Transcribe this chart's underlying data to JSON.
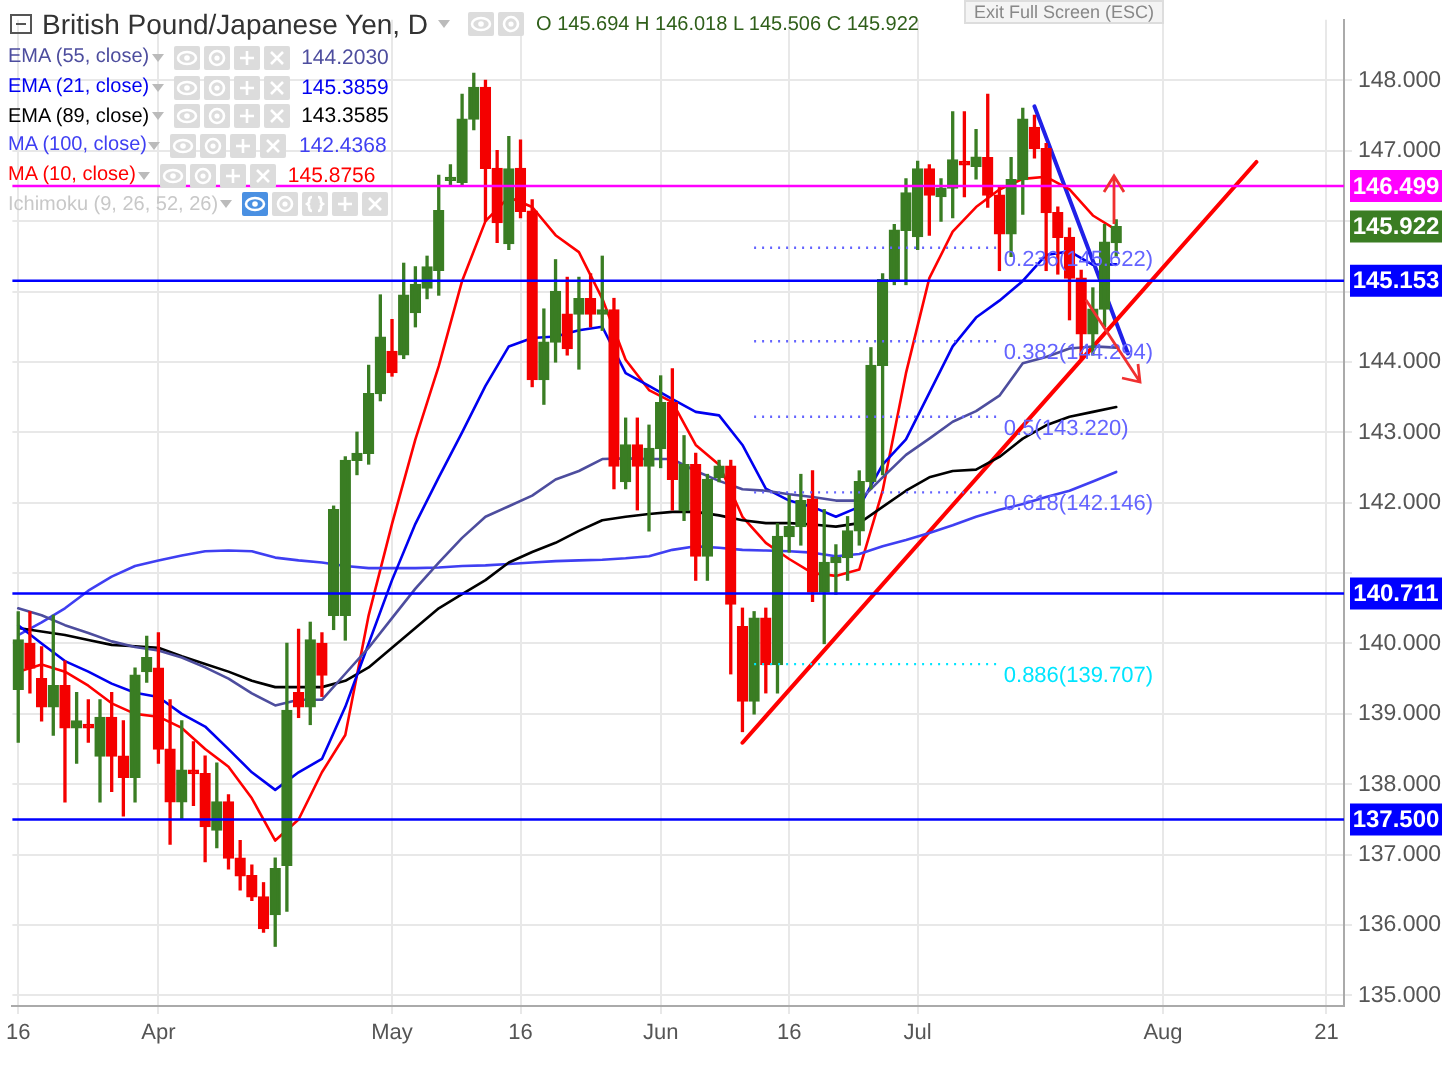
{
  "chart_data": {
    "type": "candlestick",
    "title": "British Pound/Japanese Yen, D",
    "categories": [
      "16",
      null,
      null,
      null,
      null,
      null,
      null,
      null,
      null,
      null,
      null,
      null,
      "Apr",
      null,
      null,
      null,
      null,
      null,
      null,
      null,
      null,
      null,
      null,
      null,
      null,
      null,
      null,
      null,
      null,
      null,
      null,
      null,
      "May",
      null,
      null,
      null,
      null,
      null,
      null,
      null,
      null,
      null,
      null,
      "16",
      null,
      null,
      null,
      null,
      null,
      null,
      null,
      null,
      null,
      null,
      null,
      "Jun",
      null,
      null,
      null,
      null,
      null,
      null,
      null,
      null,
      null,
      null,
      "16",
      null,
      null,
      null,
      null,
      null,
      null,
      null,
      null,
      null,
      null,
      "Jul",
      null,
      null,
      null,
      null,
      null,
      null,
      null,
      null,
      null,
      null,
      null,
      null,
      null,
      null,
      null,
      null,
      null,
      null,
      null,
      null,
      "Aug",
      null,
      null,
      null,
      null,
      null,
      null,
      null,
      null,
      null,
      null,
      null,
      null,
      null,
      "21",
      null
    ],
    "ohlc": [
      [
        139.35,
        140.45,
        138.6,
        140.05
      ],
      [
        140.0,
        140.45,
        139.3,
        139.65
      ],
      [
        139.5,
        139.95,
        138.9,
        139.1
      ],
      [
        139.1,
        140.4,
        138.7,
        139.4
      ],
      [
        139.4,
        139.75,
        137.75,
        138.8
      ],
      [
        138.8,
        139.3,
        138.3,
        138.9
      ],
      [
        138.85,
        139.2,
        138.6,
        138.8
      ],
      [
        138.4,
        139.2,
        137.75,
        138.95
      ],
      [
        138.95,
        139.3,
        137.9,
        138.4
      ],
      [
        138.4,
        138.9,
        137.55,
        138.1
      ],
      [
        138.1,
        139.65,
        137.75,
        139.55
      ],
      [
        139.6,
        140.1,
        139.45,
        139.8
      ],
      [
        139.65,
        140.15,
        138.3,
        138.5
      ],
      [
        138.5,
        139.2,
        137.15,
        137.75
      ],
      [
        137.75,
        138.9,
        137.5,
        138.2
      ],
      [
        138.2,
        138.6,
        137.7,
        138.15
      ],
      [
        138.15,
        138.4,
        136.9,
        137.4
      ],
      [
        137.35,
        138.3,
        137.1,
        137.75
      ],
      [
        137.75,
        137.85,
        136.8,
        136.95
      ],
      [
        136.95,
        137.2,
        136.5,
        136.7
      ],
      [
        136.7,
        136.85,
        136.35,
        136.4
      ],
      [
        136.4,
        136.6,
        135.9,
        135.95
      ],
      [
        136.15,
        136.95,
        135.7,
        136.8
      ],
      [
        136.85,
        140.0,
        136.2,
        139.05
      ],
      [
        139.3,
        140.2,
        138.95,
        139.1
      ],
      [
        139.1,
        140.3,
        138.85,
        140.05
      ],
      [
        140.0,
        140.15,
        139.25,
        139.55
      ],
      [
        140.4,
        141.95,
        140.2,
        141.9
      ],
      [
        140.4,
        142.65,
        140.05,
        142.6
      ],
      [
        142.6,
        143.0,
        142.4,
        142.7
      ],
      [
        142.7,
        143.95,
        142.55,
        143.55
      ],
      [
        143.55,
        144.95,
        143.45,
        144.35
      ],
      [
        144.15,
        144.6,
        143.8,
        143.85
      ],
      [
        144.1,
        145.4,
        144.05,
        144.95
      ],
      [
        144.7,
        145.35,
        144.5,
        145.1
      ],
      [
        145.05,
        145.5,
        144.9,
        145.35
      ],
      [
        145.3,
        146.65,
        144.95,
        146.15
      ],
      [
        146.58,
        146.8,
        146.5,
        146.62
      ],
      [
        146.55,
        147.8,
        146.5,
        147.45
      ],
      [
        147.45,
        148.1,
        147.3,
        147.9
      ],
      [
        147.9,
        148.0,
        146.0,
        146.75
      ],
      [
        146.75,
        147.0,
        145.7,
        145.98
      ],
      [
        145.68,
        147.2,
        145.6,
        146.74
      ],
      [
        146.75,
        147.15,
        146.05,
        146.14
      ],
      [
        146.14,
        146.3,
        143.65,
        143.75
      ],
      [
        143.75,
        144.75,
        143.4,
        144.28
      ],
      [
        144.28,
        145.45,
        144.0,
        145.0
      ],
      [
        144.68,
        145.2,
        144.1,
        144.19
      ],
      [
        144.68,
        145.2,
        143.9,
        144.9
      ],
      [
        144.9,
        145.25,
        144.5,
        144.68
      ],
      [
        144.68,
        145.5,
        144.45,
        144.74
      ],
      [
        144.74,
        144.9,
        142.2,
        142.52
      ],
      [
        142.3,
        143.2,
        142.2,
        142.82
      ],
      [
        142.82,
        143.2,
        141.9,
        142.52
      ],
      [
        142.52,
        143.1,
        141.6,
        142.77
      ],
      [
        142.77,
        143.8,
        142.5,
        143.42
      ],
      [
        143.42,
        143.9,
        141.9,
        142.33
      ],
      [
        141.89,
        142.95,
        141.75,
        142.54
      ],
      [
        142.54,
        142.7,
        140.9,
        141.24
      ],
      [
        141.24,
        142.4,
        140.9,
        142.33
      ],
      [
        142.36,
        142.6,
        142.3,
        142.52
      ],
      [
        142.52,
        142.6,
        139.57,
        140.56
      ],
      [
        140.24,
        140.5,
        138.75,
        139.18
      ],
      [
        139.18,
        140.45,
        139.0,
        140.36
      ],
      [
        140.36,
        140.5,
        139.3,
        139.7
      ],
      [
        139.7,
        141.7,
        139.3,
        141.52
      ],
      [
        141.52,
        142.1,
        141.3,
        141.66
      ],
      [
        141.66,
        142.4,
        141.4,
        142.03
      ],
      [
        142.05,
        142.45,
        140.6,
        140.73
      ],
      [
        140.73,
        141.9,
        140.0,
        141.15
      ],
      [
        141.15,
        141.4,
        140.7,
        141.22
      ],
      [
        141.22,
        141.8,
        140.9,
        141.6
      ],
      [
        141.6,
        142.45,
        141.4,
        142.3
      ],
      [
        142.3,
        144.2,
        142.2,
        143.95
      ],
      [
        143.95,
        145.25,
        142.4,
        145.17
      ],
      [
        145.17,
        145.95,
        145.1,
        145.87
      ],
      [
        145.87,
        146.6,
        145.1,
        146.4
      ],
      [
        145.78,
        146.85,
        145.6,
        146.74
      ],
      [
        146.74,
        146.8,
        145.8,
        146.37
      ],
      [
        146.35,
        146.6,
        146.0,
        146.47
      ],
      [
        146.47,
        147.55,
        146.05,
        146.87
      ],
      [
        146.85,
        147.55,
        146.35,
        146.8
      ],
      [
        146.78,
        147.3,
        146.6,
        146.91
      ],
      [
        146.9,
        147.8,
        146.2,
        146.37
      ],
      [
        146.37,
        146.5,
        145.3,
        145.82
      ],
      [
        145.82,
        146.9,
        145.5,
        146.59
      ],
      [
        146.59,
        147.6,
        146.1,
        147.45
      ],
      [
        147.33,
        147.5,
        146.9,
        147.03
      ],
      [
        147.03,
        147.1,
        145.3,
        146.12
      ],
      [
        146.12,
        146.2,
        145.25,
        145.77
      ],
      [
        145.77,
        145.9,
        144.6,
        145.19
      ],
      [
        145.19,
        145.3,
        144.05,
        144.4
      ],
      [
        144.4,
        145.05,
        144.1,
        144.75
      ],
      [
        144.75,
        145.95,
        144.5,
        145.7
      ],
      [
        145.694,
        146.018,
        145.506,
        145.922
      ],
      null,
      null,
      null,
      null,
      null,
      null,
      null,
      null,
      null,
      null,
      null,
      null,
      null,
      null,
      null,
      null,
      null,
      null,
      null
    ],
    "colors": [
      "#3a7d23",
      "#f40000",
      "#f40000",
      "#3a7d23",
      "#f40000",
      "#3a7d23",
      "#f40000",
      "#3a7d23",
      "#f40000",
      "#f40000",
      "#3a7d23",
      "#3a7d23",
      "#f40000",
      "#f40000",
      "#3a7d23",
      "#f40000",
      "#f40000",
      "#3a7d23",
      "#f40000",
      "#f40000",
      "#f40000",
      "#f40000",
      "#3a7d23",
      "#3a7d23",
      "#f40000",
      "#3a7d23",
      "#f40000",
      "#3a7d23",
      "#3a7d23",
      "#3a7d23",
      "#3a7d23",
      "#3a7d23",
      "#f40000",
      "#3a7d23",
      "#3a7d23",
      "#3a7d23",
      "#3a7d23",
      "#3a7d23",
      "#3a7d23",
      "#3a7d23",
      "#f40000",
      "#f40000",
      "#3a7d23",
      "#f40000",
      "#f40000",
      "#3a7d23",
      "#3a7d23",
      "#f40000",
      "#3a7d23",
      "#f40000",
      "#3a7d23",
      "#f40000",
      "#3a7d23",
      "#f40000",
      "#3a7d23",
      "#3a7d23",
      "#f40000",
      "#3a7d23",
      "#f40000",
      "#3a7d23",
      "#3a7d23",
      "#f40000",
      "#f40000",
      "#3a7d23",
      "#f40000",
      "#3a7d23",
      "#3a7d23",
      "#3a7d23",
      "#f40000",
      "#3a7d23",
      "#3a7d23",
      "#3a7d23",
      "#3a7d23",
      "#3a7d23",
      "#3a7d23",
      "#3a7d23",
      "#3a7d23",
      "#3a7d23",
      "#f40000",
      "#3a7d23",
      "#3a7d23",
      "#f40000",
      "#3a7d23",
      "#f40000",
      "#f40000",
      "#3a7d23",
      "#3a7d23",
      "#f40000",
      "#f40000",
      "#f40000",
      "#f40000",
      "#f40000",
      "#3a7d23",
      "#3a7d23",
      "#3a7d23",
      null,
      null,
      null,
      null,
      null,
      null,
      null,
      null,
      null,
      null,
      null,
      null,
      null,
      null,
      null,
      null,
      null,
      null,
      null
    ],
    "series": [
      {
        "type": "line",
        "name": "EMA (55, close)",
        "color": "#4d4d9e",
        "values": [
          140.5,
          null,
          140.4,
          null,
          140.26,
          null,
          140.15,
          null,
          140.03,
          null,
          139.95,
          null,
          139.9,
          null,
          139.8,
          null,
          139.66,
          null,
          139.5,
          null,
          139.29,
          null,
          139.12,
          null,
          139.2,
          null,
          139.2,
          null,
          139.57,
          null,
          139.94,
          null,
          140.36,
          null,
          140.78,
          null,
          141.15,
          null,
          141.5,
          null,
          141.8,
          null,
          141.95,
          null,
          142.1,
          null,
          142.33,
          null,
          142.45,
          null,
          142.62,
          null,
          142.63,
          null,
          142.62,
          null,
          142.62,
          null,
          142.45,
          null,
          142.31,
          null,
          142.19,
          null,
          142.17,
          null,
          142.12,
          null,
          142.08,
          null,
          142.03,
          null,
          142.03,
          null,
          142.36,
          null,
          142.68,
          null,
          142.91,
          null,
          143.15,
          null,
          143.3,
          null,
          143.52,
          null,
          143.98,
          null,
          144.07,
          null,
          144.19,
          null,
          144.22,
          null,
          144.203,
          null,
          null,
          null,
          null,
          null,
          null,
          null,
          null,
          null,
          null,
          null,
          null,
          null,
          null,
          null,
          null,
          null,
          null,
          null
        ]
      },
      {
        "type": "line",
        "name": "EMA (21, close)",
        "color": "#0000f0",
        "values": [
          140.26,
          null,
          140.0,
          null,
          139.75,
          null,
          139.6,
          null,
          139.43,
          null,
          139.3,
          null,
          139.24,
          null,
          139.0,
          null,
          138.82,
          null,
          138.5,
          null,
          138.17,
          null,
          137.92,
          null,
          138.17,
          null,
          138.36,
          null,
          139.1,
          null,
          140.0,
          null,
          140.9,
          null,
          141.7,
          null,
          142.36,
          null,
          143.0,
          null,
          143.66,
          null,
          144.22,
          null,
          144.34,
          null,
          144.36,
          null,
          144.45,
          null,
          144.5,
          null,
          143.84,
          null,
          143.66,
          null,
          143.47,
          null,
          143.29,
          null,
          143.24,
          null,
          142.82,
          null,
          142.2,
          null,
          142.03,
          null,
          141.94,
          null,
          141.8,
          null,
          141.94,
          null,
          142.54,
          null,
          142.9,
          null,
          143.56,
          null,
          144.22,
          null,
          144.63,
          null,
          144.87,
          null,
          145.15,
          null,
          145.52,
          null,
          145.57,
          null,
          145.38,
          null,
          145.3859,
          null,
          null,
          null,
          null,
          null,
          null,
          null,
          null,
          null,
          null,
          null,
          null,
          null,
          null,
          null,
          null,
          null,
          null,
          null
        ]
      },
      {
        "type": "line",
        "name": "EMA (89, close)",
        "color": "#000000",
        "values": [
          140.22,
          null,
          140.17,
          null,
          140.12,
          null,
          140.05,
          null,
          139.98,
          null,
          139.96,
          null,
          139.94,
          null,
          139.82,
          null,
          139.71,
          null,
          139.6,
          null,
          139.47,
          null,
          139.38,
          null,
          139.38,
          null,
          139.38,
          null,
          139.47,
          null,
          139.66,
          null,
          139.94,
          null,
          140.22,
          null,
          140.5,
          null,
          140.7,
          null,
          140.9,
          null,
          141.15,
          null,
          141.3,
          null,
          141.43,
          null,
          141.6,
          null,
          141.75,
          null,
          141.8,
          null,
          141.84,
          null,
          141.87,
          null,
          141.87,
          null,
          141.82,
          null,
          141.75,
          null,
          141.71,
          null,
          141.71,
          null,
          141.69,
          null,
          141.66,
          null,
          141.71,
          null,
          141.94,
          null,
          142.17,
          null,
          142.36,
          null,
          142.45,
          null,
          142.47,
          null,
          142.65,
          null,
          142.91,
          null,
          143.1,
          null,
          143.22,
          null,
          143.29,
          null,
          143.3585,
          null,
          null,
          null,
          null,
          null,
          null,
          null,
          null,
          null,
          null,
          null,
          null,
          null,
          null,
          null,
          null,
          null,
          null,
          null
        ]
      },
      {
        "type": "line",
        "name": "MA (100, close)",
        "color": "#3f3ff2",
        "values": [
          140.12,
          null,
          140.3,
          null,
          140.5,
          null,
          140.75,
          null,
          140.95,
          null,
          141.1,
          null,
          141.18,
          null,
          141.25,
          null,
          141.31,
          null,
          141.32,
          null,
          141.31,
          null,
          141.22,
          null,
          141.18,
          null,
          141.15,
          null,
          141.1,
          null,
          141.07,
          null,
          141.07,
          null,
          141.07,
          null,
          141.08,
          null,
          141.1,
          null,
          141.11,
          null,
          141.13,
          null,
          141.15,
          null,
          141.17,
          null,
          141.18,
          null,
          141.19,
          null,
          141.21,
          null,
          141.24,
          null,
          141.33,
          null,
          141.38,
          null,
          141.36,
          null,
          141.33,
          null,
          141.32,
          null,
          141.31,
          null,
          141.29,
          null,
          141.24,
          null,
          141.27,
          null,
          141.38,
          null,
          141.47,
          null,
          141.57,
          null,
          141.68,
          null,
          141.8,
          null,
          141.9,
          null,
          141.98,
          null,
          142.08,
          null,
          142.17,
          null,
          142.3,
          null,
          142.4368,
          null,
          null,
          null,
          null,
          null,
          null,
          null,
          null,
          null,
          null,
          null,
          null,
          null,
          null,
          null,
          null,
          null,
          null,
          null
        ]
      },
      {
        "type": "line",
        "name": "MA (10, close)",
        "color": "#ff0000",
        "values": [
          139.6,
          null,
          139.7,
          null,
          139.6,
          null,
          139.4,
          null,
          139.15,
          null,
          139.0,
          null,
          138.96,
          null,
          138.8,
          null,
          138.5,
          null,
          138.25,
          null,
          137.8,
          null,
          137.2,
          null,
          137.5,
          null,
          138.17,
          null,
          138.7,
          null,
          140.4,
          null,
          141.7,
          null,
          142.9,
          null,
          143.94,
          null,
          145.15,
          null,
          146.0,
          null,
          146.34,
          null,
          146.2,
          null,
          145.8,
          null,
          145.56,
          null,
          144.9,
          null,
          144.03,
          null,
          143.6,
          null,
          143.43,
          null,
          142.82,
          null,
          142.54,
          null,
          141.8,
          null,
          141.43,
          null,
          141.2,
          null,
          141.0,
          null,
          140.96,
          null,
          141.05,
          null,
          142.17,
          null,
          143.84,
          null,
          145.19,
          null,
          145.85,
          null,
          146.2,
          null,
          146.45,
          null,
          146.6,
          null,
          146.63,
          null,
          146.45,
          null,
          146.08,
          null,
          145.8756,
          null,
          null,
          null,
          null,
          null,
          null,
          null,
          null,
          null,
          null,
          null,
          null,
          null,
          null,
          null,
          null,
          null,
          null,
          null
        ]
      },
      {
        "type": "line",
        "color": "#ff0000",
        "values": [
          null,
          null,
          null,
          null,
          null,
          null,
          null,
          null,
          null,
          null,
          null,
          null,
          null,
          null,
          null,
          null,
          null,
          null,
          null,
          null,
          null,
          null,
          null,
          null,
          null,
          null,
          null,
          null,
          null,
          null,
          null,
          null,
          null,
          null,
          null,
          null,
          null,
          null,
          null,
          null,
          null,
          null,
          null,
          null,
          null,
          null,
          null,
          null,
          null,
          null,
          null,
          null,
          null,
          null,
          null,
          null,
          null,
          null,
          null,
          null,
          null,
          null,
          138.59,
          null,
          null,
          null,
          null,
          null,
          null,
          null,
          null,
          null,
          null,
          null,
          null,
          null,
          null,
          null,
          null,
          null,
          null,
          null,
          null,
          null,
          null,
          null,
          null,
          null,
          null,
          null,
          null,
          null,
          null,
          null,
          null,
          null,
          null,
          null,
          null,
          null,
          null,
          null,
          null,
          null,
          null,
          null,
          146.84,
          null,
          null,
          null,
          null,
          null,
          null,
          null
        ]
      },
      {
        "type": "line",
        "color": "#2020e8",
        "values": [
          null,
          null,
          null,
          null,
          null,
          null,
          null,
          null,
          null,
          null,
          null,
          null,
          null,
          null,
          null,
          null,
          null,
          null,
          null,
          null,
          null,
          null,
          null,
          null,
          null,
          null,
          null,
          null,
          null,
          null,
          null,
          null,
          null,
          null,
          null,
          null,
          null,
          null,
          null,
          null,
          null,
          null,
          null,
          null,
          null,
          null,
          null,
          null,
          null,
          null,
          null,
          null,
          null,
          null,
          null,
          null,
          null,
          null,
          null,
          null,
          null,
          null,
          null,
          null,
          null,
          null,
          null,
          null,
          null,
          null,
          null,
          null,
          null,
          null,
          null,
          null,
          null,
          null,
          null,
          null,
          null,
          null,
          null,
          null,
          null,
          null,
          null,
          147.63,
          null,
          null,
          null,
          null,
          null,
          null,
          null,
          144.12,
          null,
          null,
          null,
          null,
          null,
          null,
          null,
          null,
          null,
          null,
          null,
          null,
          null,
          null,
          null,
          null,
          null,
          null
        ]
      }
    ],
    "ylim": [
      134.85,
      148.86
    ],
    "yticks": [
      {
        "value": 135,
        "label": "135.000"
      },
      {
        "value": 136,
        "label": "136.000"
      },
      {
        "value": 137,
        "label": "137.000"
      },
      {
        "value": 138,
        "label": "138.000"
      },
      {
        "value": 139,
        "label": "139.000"
      },
      {
        "value": 140,
        "label": "140.000"
      },
      {
        "value": 141,
        "label": null
      },
      {
        "value": 142,
        "label": "142.000"
      },
      {
        "value": 143,
        "label": "143.000"
      },
      {
        "value": 144,
        "label": "144.000"
      },
      {
        "value": 145,
        "label": null
      },
      {
        "value": 146,
        "label": null
      },
      {
        "value": 147,
        "label": "147.000"
      },
      {
        "value": 148,
        "label": "148.000"
      }
    ],
    "ref_lines": [
      {
        "axis": "y",
        "value": 146.499,
        "label": "146.499",
        "color": "#ff00ff"
      },
      {
        "axis": "y",
        "value": 145.153,
        "label": "145.153",
        "color": "#0000ff"
      },
      {
        "axis": "y",
        "value": 140.711,
        "label": "140.711",
        "color": "#0000ff"
      },
      {
        "axis": "y",
        "value": 137.5,
        "label": "137.500",
        "color": "#0000ff"
      },
      {
        "axis": "y",
        "value": 145.622,
        "label": "0.236(145.622)",
        "color": "#6464ff",
        "line_style": "dotted"
      },
      {
        "axis": "y",
        "value": 144.294,
        "label": "0.382(144.294)",
        "color": "#6464ff",
        "line_style": "dotted"
      },
      {
        "axis": "y",
        "value": 143.22,
        "label": "0.5(143.220)",
        "color": "#6464ff",
        "line_style": "dotted"
      },
      {
        "axis": "y",
        "value": 142.146,
        "label": "0.618(142.146)",
        "color": "#6464ff",
        "line_style": "dotted"
      },
      {
        "axis": "y",
        "value": 139.707,
        "label": "0.886(139.707)",
        "color": "#00e5ff",
        "line_style": "dotted"
      }
    ],
    "annotations": [
      "O 145.694 H 146.018 L 145.506 C 145.922",
      "Ichimoku (9, 26, 52, 26)",
      "Exit Full Screen (ESC)",
      "145.922",
      "144.2030",
      "145.3859",
      "143.3585",
      "142.4368",
      "145.8756"
    ],
    "grid": true,
    "legend": "top left",
    "marker": "none"
  }
}
